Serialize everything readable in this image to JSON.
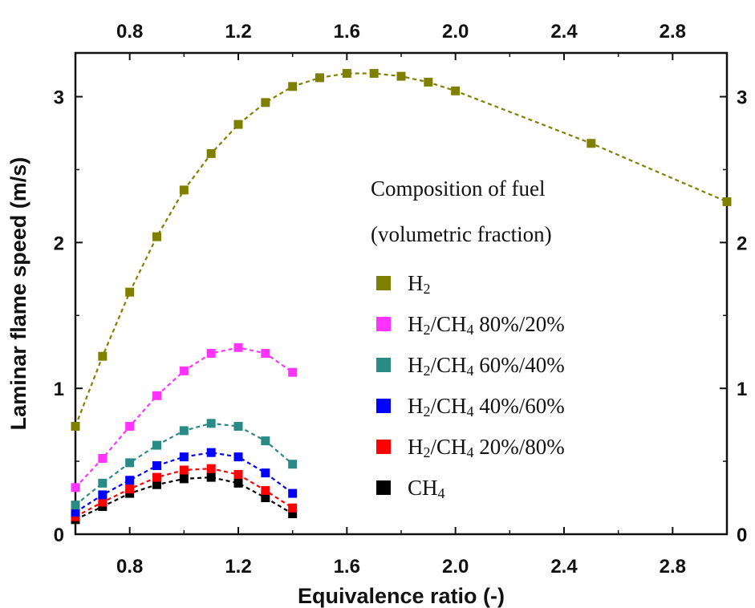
{
  "chart_data": {
    "type": "line",
    "title": "",
    "xlabel": "Equivalence ratio (-)",
    "ylabel": "Laminar flame speed (m/s)",
    "xlim": [
      0.6,
      3.0
    ],
    "ylim": [
      0,
      3.3
    ],
    "x_ticks": [
      "0.8",
      "1.2",
      "1.6",
      "2.0",
      "2.4",
      "2.8"
    ],
    "x_tick_values": [
      0.8,
      1.2,
      1.6,
      2.0,
      2.4,
      2.8
    ],
    "y_ticks": [
      "0",
      "1",
      "2",
      "3"
    ],
    "y_tick_values": [
      0,
      1,
      2,
      3
    ],
    "mirrored_axes": true,
    "grid": false,
    "line_style": "dashed",
    "marker": "square",
    "legend": {
      "title_line1": "Composition of fuel",
      "title_line2": "(volumetric fraction)",
      "placement": "center-right"
    },
    "series": [
      {
        "name": "H2",
        "label_parts": [
          {
            "t": "H"
          },
          {
            "t": "2",
            "sub": true
          }
        ],
        "color": "#808000",
        "x": [
          0.6,
          0.7,
          0.8,
          0.9,
          1.0,
          1.1,
          1.2,
          1.3,
          1.4,
          1.5,
          1.6,
          1.7,
          1.8,
          1.9,
          2.0,
          2.5,
          3.0
        ],
        "y": [
          0.74,
          1.22,
          1.66,
          2.04,
          2.36,
          2.61,
          2.81,
          2.96,
          3.07,
          3.13,
          3.16,
          3.16,
          3.14,
          3.1,
          3.04,
          2.68,
          2.28
        ]
      },
      {
        "name": "H2/CH4 80%/20%",
        "label_parts": [
          {
            "t": "H"
          },
          {
            "t": "2",
            "sub": true
          },
          {
            "t": "/CH"
          },
          {
            "t": "4",
            "sub": true
          },
          {
            "t": " 80%/20%"
          }
        ],
        "color": "#ff33ff",
        "x": [
          0.6,
          0.7,
          0.8,
          0.9,
          1.0,
          1.1,
          1.2,
          1.3,
          1.4
        ],
        "y": [
          0.32,
          0.52,
          0.74,
          0.95,
          1.12,
          1.24,
          1.28,
          1.24,
          1.11
        ]
      },
      {
        "name": "H2/CH4 60%/40%",
        "label_parts": [
          {
            "t": "H"
          },
          {
            "t": "2",
            "sub": true
          },
          {
            "t": "/CH"
          },
          {
            "t": "4",
            "sub": true
          },
          {
            "t": " 60%/40%"
          }
        ],
        "color": "#2a8a86",
        "x": [
          0.6,
          0.7,
          0.8,
          0.9,
          1.0,
          1.1,
          1.2,
          1.3,
          1.4
        ],
        "y": [
          0.2,
          0.35,
          0.49,
          0.61,
          0.71,
          0.76,
          0.74,
          0.64,
          0.48
        ]
      },
      {
        "name": "H2/CH4 40%/60%",
        "label_parts": [
          {
            "t": "H"
          },
          {
            "t": "2",
            "sub": true
          },
          {
            "t": "/CH"
          },
          {
            "t": "4",
            "sub": true
          },
          {
            "t": " 40%/60%"
          }
        ],
        "color": "#0000ff",
        "x": [
          0.6,
          0.7,
          0.8,
          0.9,
          1.0,
          1.1,
          1.2,
          1.3,
          1.4
        ],
        "y": [
          0.15,
          0.27,
          0.37,
          0.47,
          0.53,
          0.56,
          0.53,
          0.42,
          0.28
        ]
      },
      {
        "name": "H2/CH4 20%/80%",
        "label_parts": [
          {
            "t": "H"
          },
          {
            "t": "2",
            "sub": true
          },
          {
            "t": "/CH"
          },
          {
            "t": "4",
            "sub": true
          },
          {
            "t": " 20%/80%"
          }
        ],
        "color": "#ff0000",
        "x": [
          0.6,
          0.7,
          0.8,
          0.9,
          1.0,
          1.1,
          1.2,
          1.3,
          1.4
        ],
        "y": [
          0.12,
          0.22,
          0.31,
          0.39,
          0.44,
          0.45,
          0.41,
          0.3,
          0.18
        ]
      },
      {
        "name": "CH4",
        "label_parts": [
          {
            "t": "CH"
          },
          {
            "t": "4",
            "sub": true
          }
        ],
        "color": "#000000",
        "x": [
          0.6,
          0.7,
          0.8,
          0.9,
          1.0,
          1.1,
          1.2,
          1.3,
          1.4
        ],
        "y": [
          0.1,
          0.19,
          0.28,
          0.34,
          0.38,
          0.39,
          0.35,
          0.25,
          0.14
        ]
      }
    ]
  }
}
